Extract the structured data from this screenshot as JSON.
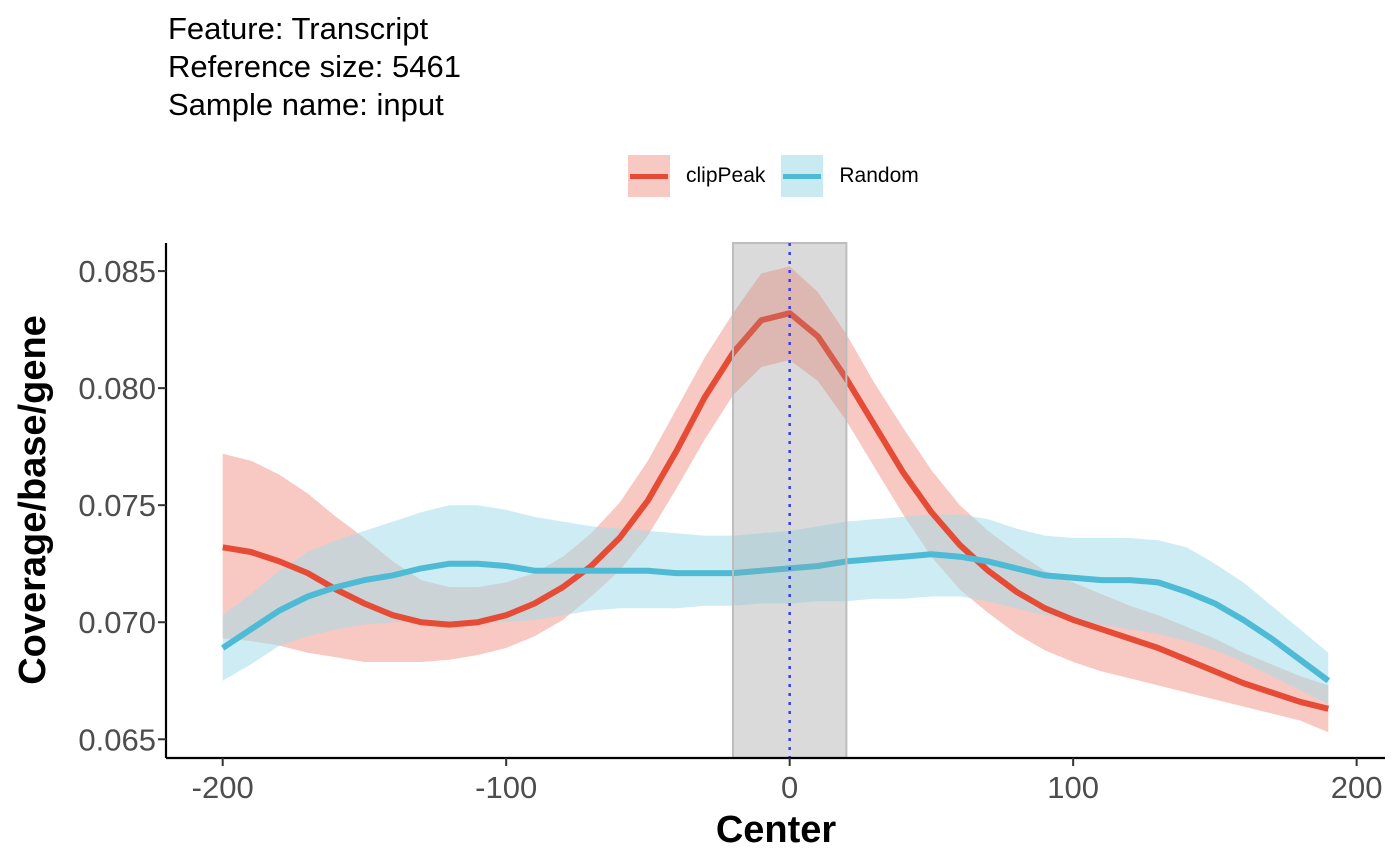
{
  "chart_data": {
    "type": "line",
    "title_lines": [
      "Feature: Transcript",
      "Reference size: 5461",
      "Sample name: input"
    ],
    "xlabel": "Center",
    "ylabel": "Coverage/base/gene",
    "xlim": [
      -220,
      210
    ],
    "ylim": [
      0.0642,
      0.0862
    ],
    "x_ticks": [
      -200,
      -100,
      0,
      100,
      200
    ],
    "x_tick_labels": [
      "-200",
      "-100",
      "0",
      "100",
      "200"
    ],
    "y_ticks": [
      0.065,
      0.07,
      0.075,
      0.08,
      0.085
    ],
    "y_tick_labels": [
      "0.065",
      "0.070",
      "0.075",
      "0.080",
      "0.085"
    ],
    "grid": false,
    "legend_position": "top",
    "highlight_region": [
      -20,
      20
    ],
    "reference_line_x": 0,
    "x": [
      -200,
      -190,
      -180,
      -170,
      -160,
      -150,
      -140,
      -130,
      -120,
      -110,
      -100,
      -90,
      -80,
      -70,
      -60,
      -50,
      -40,
      -30,
      -20,
      -10,
      0,
      10,
      20,
      30,
      40,
      50,
      60,
      70,
      80,
      90,
      100,
      110,
      120,
      130,
      140,
      150,
      160,
      170,
      180,
      190
    ],
    "series": [
      {
        "name": "clipPeak",
        "color": "#E64B35",
        "band_color": "#F39B8F",
        "values": [
          0.0732,
          0.073,
          0.0726,
          0.0721,
          0.0714,
          0.0708,
          0.0703,
          0.07,
          0.0699,
          0.07,
          0.0703,
          0.0708,
          0.0715,
          0.0724,
          0.0736,
          0.0752,
          0.0773,
          0.0796,
          0.0815,
          0.0829,
          0.0832,
          0.0822,
          0.0804,
          0.0784,
          0.0764,
          0.0747,
          0.0733,
          0.0722,
          0.0713,
          0.0706,
          0.0701,
          0.0697,
          0.0693,
          0.0689,
          0.0684,
          0.0679,
          0.0674,
          0.067,
          0.0666,
          0.0663
        ],
        "upper": [
          0.0772,
          0.0769,
          0.0763,
          0.0755,
          0.0745,
          0.0736,
          0.0726,
          0.0718,
          0.0715,
          0.0715,
          0.0717,
          0.0721,
          0.0728,
          0.0738,
          0.0751,
          0.0769,
          0.0791,
          0.0813,
          0.0832,
          0.0849,
          0.0852,
          0.0841,
          0.0823,
          0.0802,
          0.0783,
          0.0765,
          0.075,
          0.0739,
          0.073,
          0.0722,
          0.0717,
          0.0712,
          0.0707,
          0.0703,
          0.0698,
          0.0693,
          0.0687,
          0.0682,
          0.0677,
          0.0673
        ],
        "lower": [
          0.0693,
          0.0692,
          0.069,
          0.0687,
          0.0685,
          0.0683,
          0.0683,
          0.0683,
          0.0684,
          0.0686,
          0.0689,
          0.0694,
          0.0701,
          0.0711,
          0.0722,
          0.0737,
          0.0757,
          0.0778,
          0.0797,
          0.0809,
          0.0812,
          0.0803,
          0.0786,
          0.0766,
          0.0746,
          0.0728,
          0.0714,
          0.0704,
          0.0695,
          0.0688,
          0.0683,
          0.0679,
          0.0676,
          0.0673,
          0.067,
          0.0667,
          0.0664,
          0.0661,
          0.0658,
          0.0653
        ]
      },
      {
        "name": "Random",
        "color": "#4DBBD5",
        "band_color": "#A6DCEA",
        "values": [
          0.0689,
          0.0697,
          0.0705,
          0.0711,
          0.0715,
          0.0718,
          0.072,
          0.0723,
          0.0725,
          0.0725,
          0.0724,
          0.0722,
          0.0722,
          0.0722,
          0.0722,
          0.0722,
          0.0721,
          0.0721,
          0.0721,
          0.0722,
          0.0723,
          0.0724,
          0.0726,
          0.0727,
          0.0728,
          0.0729,
          0.0728,
          0.0726,
          0.0723,
          0.072,
          0.0719,
          0.0718,
          0.0718,
          0.0717,
          0.0713,
          0.0708,
          0.0701,
          0.0693,
          0.0684,
          0.0675
        ],
        "upper": [
          0.0703,
          0.0712,
          0.0722,
          0.073,
          0.0735,
          0.0739,
          0.0743,
          0.0747,
          0.075,
          0.075,
          0.0748,
          0.0745,
          0.0743,
          0.0741,
          0.074,
          0.0739,
          0.0738,
          0.0737,
          0.0737,
          0.0738,
          0.0739,
          0.0741,
          0.0743,
          0.0744,
          0.0745,
          0.0746,
          0.0746,
          0.0744,
          0.074,
          0.0737,
          0.0736,
          0.0736,
          0.0736,
          0.0735,
          0.0732,
          0.0725,
          0.0717,
          0.0707,
          0.0697,
          0.0687
        ],
        "lower": [
          0.0675,
          0.0682,
          0.069,
          0.0694,
          0.0697,
          0.0699,
          0.07,
          0.07,
          0.07,
          0.07,
          0.07,
          0.0701,
          0.0703,
          0.0705,
          0.0706,
          0.0706,
          0.0706,
          0.0707,
          0.0707,
          0.0708,
          0.0708,
          0.0709,
          0.0709,
          0.071,
          0.071,
          0.0711,
          0.0711,
          0.0709,
          0.0706,
          0.0703,
          0.0701,
          0.0699,
          0.0697,
          0.0695,
          0.0692,
          0.0688,
          0.0683,
          0.0677,
          0.0671,
          0.0665
        ]
      }
    ]
  }
}
